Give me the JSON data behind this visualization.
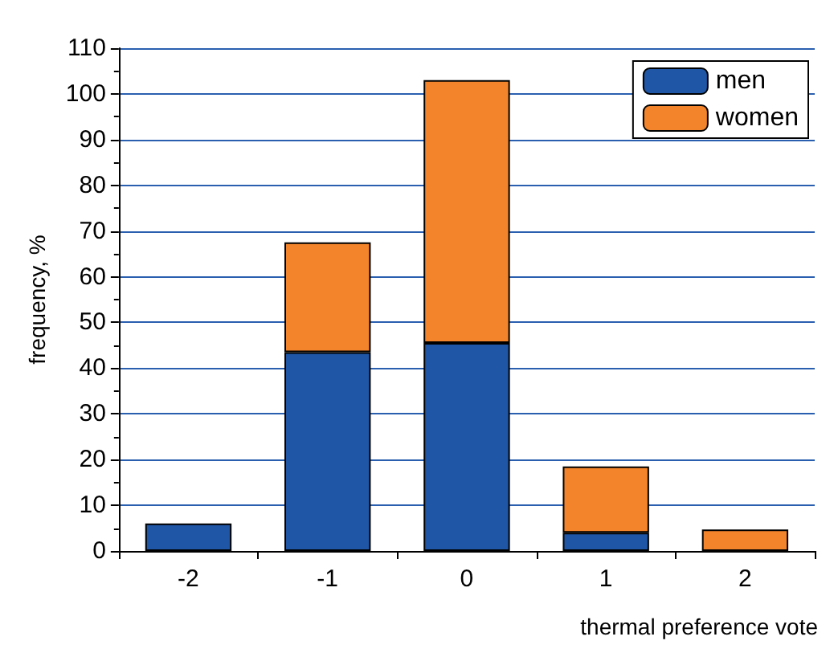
{
  "chart_data": {
    "type": "bar",
    "stacked": true,
    "xlabel": "thermal preference vote",
    "ylabel": "frequency, %",
    "categories": [
      "-2",
      "-1",
      "0",
      "1",
      "2"
    ],
    "series": [
      {
        "name": "men",
        "color": "#1f56a5",
        "values": [
          6,
          43.5,
          45.5,
          4,
          0
        ]
      },
      {
        "name": "women",
        "color": "#f4842b",
        "values": [
          0,
          24,
          57.5,
          14.5,
          4.7
        ]
      }
    ],
    "ylim": [
      0,
      110
    ],
    "yticks": [
      0,
      10,
      20,
      30,
      40,
      50,
      60,
      70,
      80,
      90,
      100,
      110
    ],
    "grid": "y",
    "legend": "top right"
  }
}
